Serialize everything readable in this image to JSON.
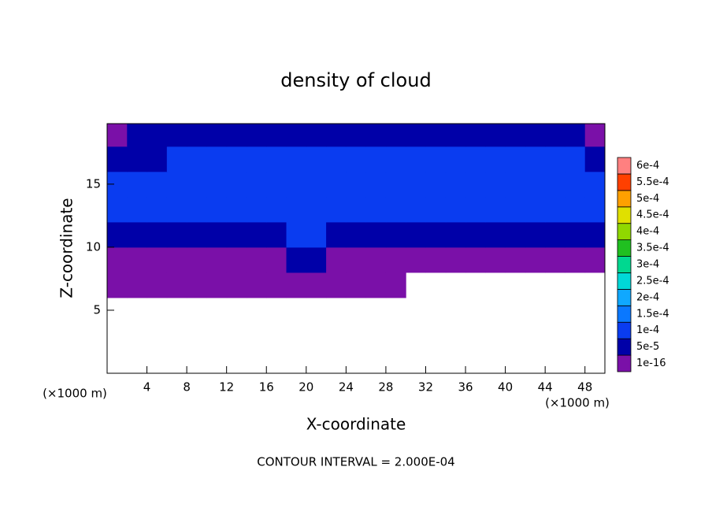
{
  "chart_data": {
    "type": "contour",
    "title": "density of cloud",
    "xlabel": "X-coordinate",
    "ylabel": "Z-coordinate",
    "x_unit_label": "(×1000 m)",
    "y_unit_label": "(×1000 m)",
    "footer": "CONTOUR INTERVAL = 2.000E-04",
    "xlim": [
      0,
      50
    ],
    "ylim": [
      0,
      19.8
    ],
    "xticks": [
      4,
      8,
      12,
      16,
      20,
      24,
      28,
      32,
      36,
      40,
      44,
      48
    ],
    "yticks": [
      5,
      10,
      15
    ],
    "x": [
      1,
      3,
      5,
      7,
      9,
      11,
      13,
      15,
      17,
      19,
      21,
      23,
      25,
      27,
      29,
      31,
      33,
      35,
      37,
      39,
      41,
      43,
      45,
      47,
      49
    ],
    "z": [
      1,
      3,
      5,
      7,
      9,
      11,
      13,
      15,
      17,
      19
    ],
    "values": [
      [
        null,
        null,
        null,
        null,
        null,
        null,
        null,
        null,
        null,
        null,
        null,
        null,
        null,
        null,
        null,
        null,
        null,
        null,
        null,
        null,
        null,
        null,
        null,
        null,
        null
      ],
      [
        null,
        null,
        null,
        null,
        null,
        null,
        null,
        null,
        null,
        null,
        null,
        null,
        null,
        null,
        null,
        null,
        null,
        null,
        null,
        null,
        null,
        null,
        null,
        null,
        null
      ],
      [
        null,
        null,
        null,
        null,
        null,
        null,
        null,
        null,
        null,
        null,
        null,
        null,
        null,
        null,
        null,
        null,
        null,
        null,
        null,
        null,
        null,
        null,
        null,
        null,
        null
      ],
      [
        3e-05,
        3e-05,
        3e-05,
        3e-05,
        3e-05,
        3e-05,
        3e-05,
        3e-05,
        3e-05,
        3e-05,
        3e-05,
        3e-05,
        3e-05,
        3e-05,
        3e-05,
        null,
        null,
        null,
        null,
        null,
        null,
        null,
        null,
        null,
        null
      ],
      [
        3e-05,
        3e-05,
        3e-05,
        3e-05,
        3e-05,
        3e-05,
        3e-05,
        3e-05,
        3e-05,
        6e-05,
        6e-05,
        3e-05,
        3e-05,
        3e-05,
        3e-05,
        3e-05,
        3e-05,
        3e-05,
        3e-05,
        3e-05,
        3e-05,
        3e-05,
        3e-05,
        3e-05,
        3e-05
      ],
      [
        8e-05,
        8e-05,
        8e-05,
        8e-05,
        8e-05,
        8e-05,
        8e-05,
        8e-05,
        8e-05,
        0.00011,
        0.00011,
        8e-05,
        8e-05,
        8e-05,
        8e-05,
        8e-05,
        8e-05,
        8e-05,
        8e-05,
        8e-05,
        8e-05,
        8e-05,
        8e-05,
        8e-05,
        8e-05
      ],
      [
        0.00013,
        0.00013,
        0.00012,
        0.00012,
        0.00012,
        0.00012,
        0.00012,
        0.00012,
        0.00012,
        0.00012,
        0.00012,
        0.00012,
        0.00012,
        0.00012,
        0.00012,
        0.00012,
        0.00012,
        0.00012,
        0.00012,
        0.00012,
        0.00012,
        0.00012,
        0.00012,
        0.00012,
        0.00012
      ],
      [
        0.00012,
        0.00012,
        0.00012,
        0.00013,
        0.00013,
        0.00013,
        0.00013,
        0.00013,
        0.00013,
        0.00013,
        0.00013,
        0.00013,
        0.00013,
        0.00013,
        0.00013,
        0.00013,
        0.00013,
        0.00013,
        0.00013,
        0.00013,
        0.00013,
        0.00013,
        0.00012,
        0.00012,
        0.00012
      ],
      [
        8e-05,
        8e-05,
        8e-05,
        0.00011,
        0.00011,
        0.00014,
        0.00014,
        0.00014,
        0.00014,
        0.00014,
        0.00014,
        0.00014,
        0.00014,
        0.00014,
        0.00014,
        0.00014,
        0.00014,
        0.00014,
        0.00014,
        0.00014,
        0.00014,
        0.00014,
        0.00011,
        0.00011,
        8e-05
      ],
      [
        4e-05,
        6e-05,
        6e-05,
        6e-05,
        6e-05,
        6e-05,
        6e-05,
        6e-05,
        6e-05,
        6e-05,
        6e-05,
        6e-05,
        6e-05,
        6e-05,
        6e-05,
        6e-05,
        6e-05,
        6e-05,
        6e-05,
        6e-05,
        6e-05,
        6e-05,
        6e-05,
        6e-05,
        4e-05
      ]
    ],
    "colorbar": {
      "ticks": [
        {
          "value": 1e-16,
          "label": "1e-16"
        },
        {
          "value": 5e-05,
          "label": "5e-5"
        },
        {
          "value": 0.0001,
          "label": "1e-4"
        },
        {
          "value": 0.00015,
          "label": "1.5e-4"
        },
        {
          "value": 0.0002,
          "label": "2e-4"
        },
        {
          "value": 0.00025,
          "label": "2.5e-4"
        },
        {
          "value": 0.0003,
          "label": "3e-4"
        },
        {
          "value": 0.00035,
          "label": "3.5e-4"
        },
        {
          "value": 0.0004,
          "label": "4e-4"
        },
        {
          "value": 0.00045,
          "label": "4.5e-4"
        },
        {
          "value": 0.0005,
          "label": "5e-4"
        },
        {
          "value": 0.00055,
          "label": "5.5e-4"
        },
        {
          "value": 0.0006,
          "label": "6e-4"
        }
      ],
      "colors": [
        "#7a10a8",
        "#0000a8",
        "#0a3cf0",
        "#0a78ff",
        "#10a8ff",
        "#00d8d8",
        "#00d890",
        "#20c020",
        "#90d800",
        "#e0e000",
        "#ffa000",
        "#ff4000",
        "#ff8080"
      ]
    }
  }
}
